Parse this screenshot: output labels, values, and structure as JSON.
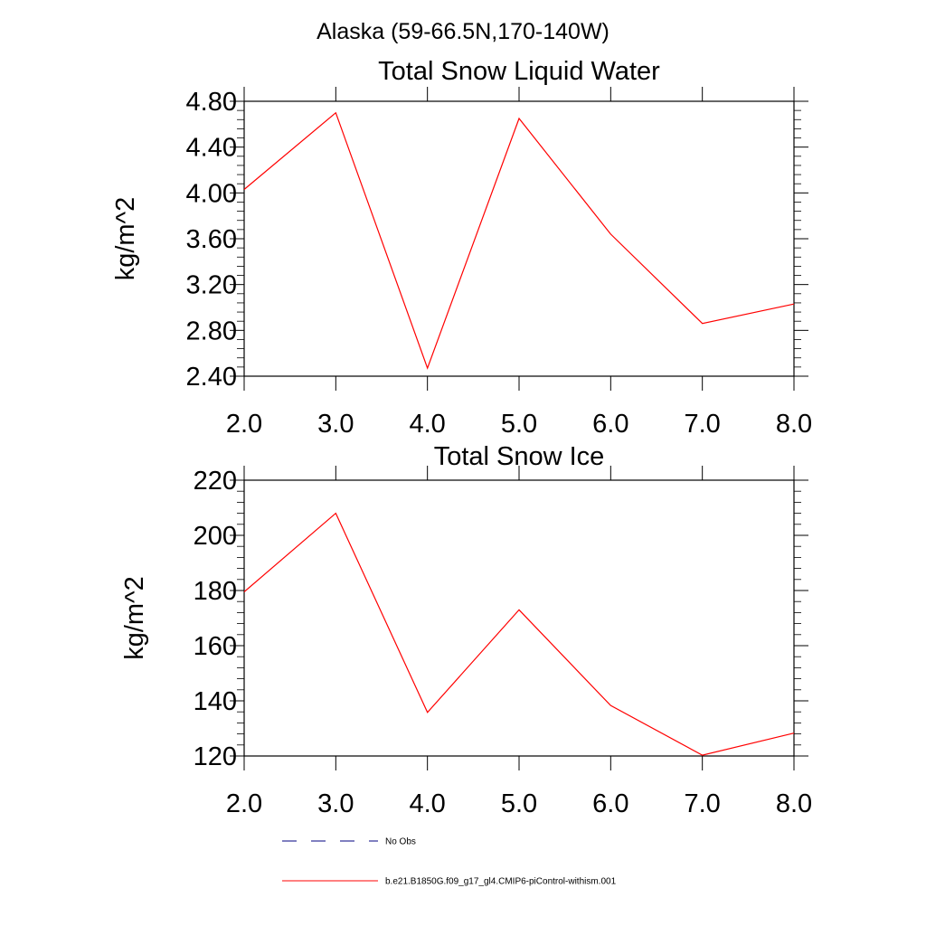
{
  "page": {
    "title": "Alaska (59-66.5N,170-140W)"
  },
  "legend": {
    "items": [
      {
        "label": "No Obs",
        "color": "#000080",
        "dash": "dashed"
      },
      {
        "label": "b.e21.B1850G.f09_g17_gl4.CMIP6-piControl-withism.001",
        "color": "#ff0000",
        "dash": "solid"
      }
    ]
  },
  "chart_data": [
    {
      "type": "line",
      "title": "Total Snow Liquid Water",
      "xlabel": "",
      "ylabel": "kg/m^2",
      "xlim": [
        2,
        8
      ],
      "ylim": [
        2.4,
        4.8
      ],
      "xticks": [
        2,
        3,
        4,
        5,
        6,
        7,
        8
      ],
      "xtick_labels": [
        "2.0",
        "3.0",
        "4.0",
        "5.0",
        "6.0",
        "7.0",
        "8.0"
      ],
      "yticks": [
        2.4,
        2.8,
        3.2,
        3.6,
        4.0,
        4.4,
        4.8
      ],
      "ytick_labels": [
        "2.40",
        "2.80",
        "3.20",
        "3.60",
        "4.00",
        "4.40",
        "4.80"
      ],
      "series": [
        {
          "name": "b.e21.B1850G.f09_g17_gl4.CMIP6-piControl-withism.001",
          "color": "#ff0000",
          "x": [
            2,
            3,
            4,
            5,
            6,
            7,
            8
          ],
          "values": [
            4.03,
            4.7,
            2.47,
            4.65,
            3.64,
            2.86,
            3.03
          ]
        }
      ]
    },
    {
      "type": "line",
      "title": "Total Snow Ice",
      "xlabel": "",
      "ylabel": "kg/m^2",
      "xlim": [
        2,
        8
      ],
      "ylim": [
        120,
        220
      ],
      "xticks": [
        2,
        3,
        4,
        5,
        6,
        7,
        8
      ],
      "xtick_labels": [
        "2.0",
        "3.0",
        "4.0",
        "5.0",
        "6.0",
        "7.0",
        "8.0"
      ],
      "yticks": [
        120,
        140,
        160,
        180,
        200,
        220
      ],
      "ytick_labels": [
        "120",
        "140",
        "160",
        "180",
        "200",
        "220"
      ],
      "series": [
        {
          "name": "b.e21.B1850G.f09_g17_gl4.CMIP6-piControl-withism.001",
          "color": "#ff0000",
          "x": [
            2,
            3,
            4,
            5,
            6,
            7,
            8
          ],
          "values": [
            179.5,
            208.0,
            135.8,
            173.0,
            138.3,
            120.3,
            128.3
          ]
        }
      ]
    }
  ]
}
